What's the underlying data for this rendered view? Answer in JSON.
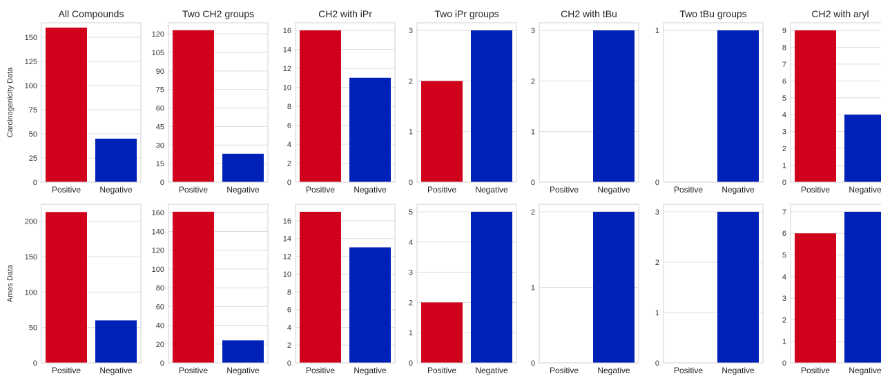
{
  "colors": {
    "positive": "#d0021b",
    "negative": "#0021b8",
    "grid": "#dcdcdc",
    "axes_frame": "#d0d0d0",
    "background": "#ffffff"
  },
  "chart_data": [
    {
      "type": "bar",
      "title": "All Compounds",
      "ylabel": "Carcinogenicity Data",
      "categories": [
        "Positive",
        "Negative"
      ],
      "values": [
        160,
        45
      ],
      "ylim": [
        0,
        165
      ],
      "yticks": [
        0,
        25,
        50,
        75,
        100,
        125,
        150
      ],
      "grid": true
    },
    {
      "type": "bar",
      "title": "Two CH2 groups",
      "ylabel": "",
      "categories": [
        "Positive",
        "Negative"
      ],
      "values": [
        123,
        23
      ],
      "ylim": [
        0,
        129
      ],
      "yticks": [
        0,
        15,
        30,
        45,
        60,
        75,
        90,
        105,
        120
      ],
      "grid": true
    },
    {
      "type": "bar",
      "title": "CH2 with iPr",
      "ylabel": "",
      "categories": [
        "Positive",
        "Negative"
      ],
      "values": [
        16,
        11
      ],
      "ylim": [
        0,
        16.8
      ],
      "yticks": [
        0,
        2,
        4,
        6,
        8,
        10,
        12,
        14,
        16
      ],
      "grid": true
    },
    {
      "type": "bar",
      "title": "Two iPr groups",
      "ylabel": "",
      "categories": [
        "Positive",
        "Negative"
      ],
      "values": [
        2,
        3
      ],
      "ylim": [
        0,
        3.15
      ],
      "yticks": [
        0,
        1,
        2,
        3
      ],
      "grid": true
    },
    {
      "type": "bar",
      "title": "CH2 with tBu",
      "ylabel": "",
      "categories": [
        "Positive",
        "Negative"
      ],
      "values": [
        0,
        3
      ],
      "ylim": [
        0,
        3.15
      ],
      "yticks": [
        0,
        1,
        2,
        3
      ],
      "grid": true
    },
    {
      "type": "bar",
      "title": "Two tBu groups",
      "ylabel": "",
      "categories": [
        "Positive",
        "Negative"
      ],
      "values": [
        0,
        1
      ],
      "ylim": [
        0,
        1.05
      ],
      "yticks": [
        0,
        1
      ],
      "grid": true
    },
    {
      "type": "bar",
      "title": "CH2 with aryl",
      "ylabel": "",
      "categories": [
        "Positive",
        "Negative"
      ],
      "values": [
        9,
        4
      ],
      "ylim": [
        0,
        9.45
      ],
      "yticks": [
        0,
        1,
        2,
        3,
        4,
        5,
        6,
        7,
        8,
        9
      ],
      "grid": true
    },
    {
      "type": "bar",
      "title": "",
      "ylabel": "Ames Data",
      "categories": [
        "Positive",
        "Negative"
      ],
      "values": [
        213,
        60
      ],
      "ylim": [
        0,
        224
      ],
      "yticks": [
        0,
        50,
        100,
        150,
        200
      ],
      "grid": true
    },
    {
      "type": "bar",
      "title": "",
      "ylabel": "",
      "categories": [
        "Positive",
        "Negative"
      ],
      "values": [
        161,
        24
      ],
      "ylim": [
        0,
        169
      ],
      "yticks": [
        0,
        20,
        40,
        60,
        80,
        100,
        120,
        140,
        160
      ],
      "grid": true
    },
    {
      "type": "bar",
      "title": "",
      "ylabel": "",
      "categories": [
        "Positive",
        "Negative"
      ],
      "values": [
        17,
        13
      ],
      "ylim": [
        0,
        17.85
      ],
      "yticks": [
        0,
        2,
        4,
        6,
        8,
        10,
        12,
        14,
        16
      ],
      "grid": true
    },
    {
      "type": "bar",
      "title": "",
      "ylabel": "",
      "categories": [
        "Positive",
        "Negative"
      ],
      "values": [
        2,
        5
      ],
      "ylim": [
        0,
        5.25
      ],
      "yticks": [
        0,
        1,
        2,
        3,
        4,
        5
      ],
      "grid": true
    },
    {
      "type": "bar",
      "title": "",
      "ylabel": "",
      "categories": [
        "Positive",
        "Negative"
      ],
      "values": [
        0,
        2
      ],
      "ylim": [
        0,
        2.1
      ],
      "yticks": [
        0,
        1,
        2
      ],
      "grid": true
    },
    {
      "type": "bar",
      "title": "",
      "ylabel": "",
      "categories": [
        "Positive",
        "Negative"
      ],
      "values": [
        0,
        3
      ],
      "ylim": [
        0,
        3.15
      ],
      "yticks": [
        0,
        1,
        2,
        3
      ],
      "grid": true
    },
    {
      "type": "bar",
      "title": "",
      "ylabel": "",
      "categories": [
        "Positive",
        "Negative"
      ],
      "values": [
        6,
        7
      ],
      "ylim": [
        0,
        7.35
      ],
      "yticks": [
        0,
        1,
        2,
        3,
        4,
        5,
        6,
        7
      ],
      "grid": true
    }
  ]
}
